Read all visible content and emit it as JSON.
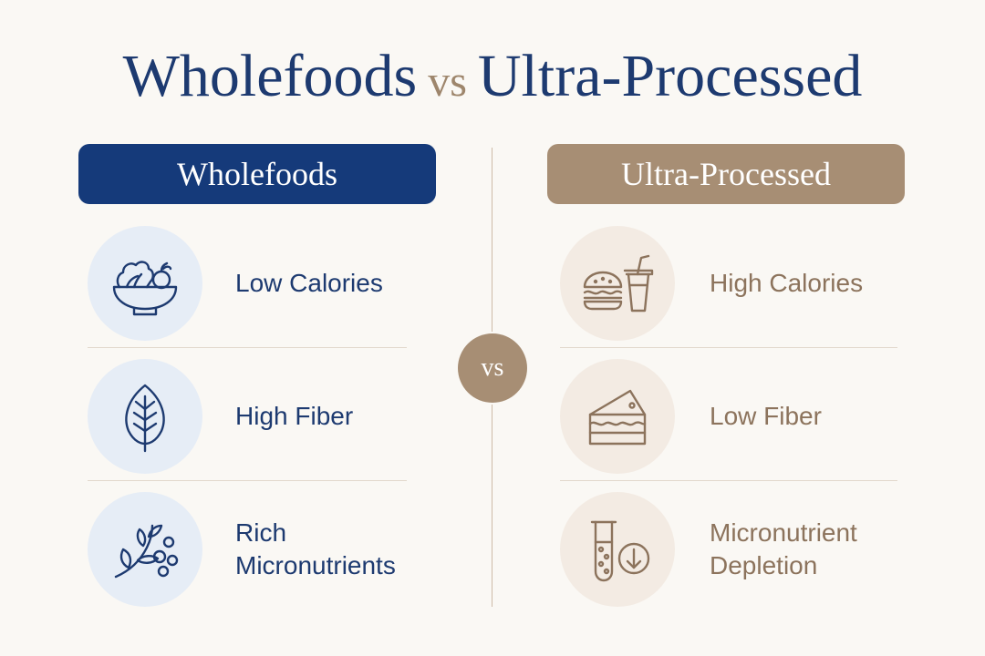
{
  "title": {
    "part1": "Wholefoods",
    "vs": "vs",
    "part2": "Ultra-Processed"
  },
  "center_badge": "vs",
  "colors": {
    "navy": "#153a7a",
    "tan": "#a78e74",
    "background": "#faf8f4",
    "left_icon_bg": "#e6edf6",
    "right_icon_bg": "#f3ebe3"
  },
  "left": {
    "header": "Wholefoods",
    "items": [
      {
        "label": "Low Calories",
        "icon": "salad-bowl-icon"
      },
      {
        "label": "High Fiber",
        "icon": "leaf-icon"
      },
      {
        "label": "Rich\nMicronutrients",
        "icon": "sprout-icon"
      }
    ]
  },
  "right": {
    "header": "Ultra-Processed",
    "items": [
      {
        "label": "High Calories",
        "icon": "burger-drink-icon"
      },
      {
        "label": "Low Fiber",
        "icon": "cake-slice-icon"
      },
      {
        "label": "Micronutrient\nDepletion",
        "icon": "test-tube-down-icon"
      }
    ]
  }
}
